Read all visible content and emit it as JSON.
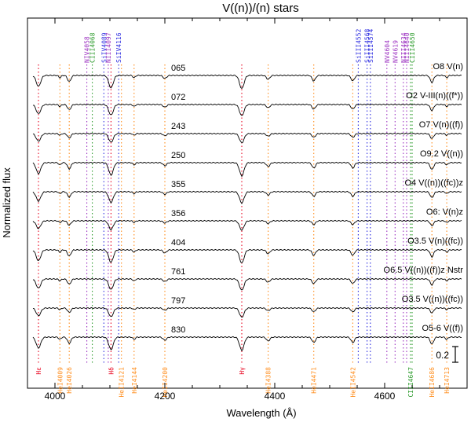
{
  "chart_data": {
    "type": "line",
    "title": "V((n))/(n) stars",
    "xlabel": "Wavelength (Å)",
    "ylabel": "Normalized flux",
    "xlim": [
      3950,
      4750
    ],
    "x_ticks": [
      4000,
      4200,
      4400,
      4600
    ],
    "scale_bar_label": "0.2",
    "line_colors": {
      "H": "#e8001c",
      "He": "#ff8c1a",
      "Si": "#2a2ae0",
      "N": "#9b30c0",
      "C": "#2a9a2a"
    },
    "lines_top": [
      {
        "label": "NIV4058",
        "wavelength": 4058,
        "element": "N"
      },
      {
        "label": "CIII4068",
        "wavelength": 4068,
        "element": "C"
      },
      {
        "label": "SiIV4089",
        "wavelength": 4089,
        "element": "Si"
      },
      {
        "label": "NIII4097",
        "wavelength": 4097,
        "element": "N"
      },
      {
        "label": "SiIV4116",
        "wavelength": 4116,
        "element": "Si"
      },
      {
        "label": "SiIII4552",
        "wavelength": 4552,
        "element": "Si"
      },
      {
        "label": "SiIII4568",
        "wavelength": 4568,
        "element": "Si"
      },
      {
        "label": "SiIII4574",
        "wavelength": 4574,
        "element": "Si"
      },
      {
        "label": "NV4604",
        "wavelength": 4604,
        "element": "N"
      },
      {
        "label": "NV4619",
        "wavelength": 4619,
        "element": "N"
      },
      {
        "label": "NIII4634",
        "wavelength": 4634,
        "element": "N"
      },
      {
        "label": "NIII4640",
        "wavelength": 4640,
        "element": "N"
      },
      {
        "label": "CIII4650",
        "wavelength": 4650,
        "element": "C"
      }
    ],
    "lines_bottom": [
      {
        "label": "Hε",
        "wavelength": 3970,
        "element": "H"
      },
      {
        "label": "HeI4009",
        "wavelength": 4009,
        "element": "He"
      },
      {
        "label": "HeI4026",
        "wavelength": 4026,
        "element": "He"
      },
      {
        "label": "Hδ",
        "wavelength": 4102,
        "element": "H"
      },
      {
        "label": "HeII4121",
        "wavelength": 4121,
        "element": "He"
      },
      {
        "label": "HeI4144",
        "wavelength": 4144,
        "element": "He"
      },
      {
        "label": "HeII4200",
        "wavelength": 4200,
        "element": "He"
      },
      {
        "label": "Hγ",
        "wavelength": 4340,
        "element": "H"
      },
      {
        "label": "HeI4388",
        "wavelength": 4388,
        "element": "He"
      },
      {
        "label": "HeI4471",
        "wavelength": 4471,
        "element": "He"
      },
      {
        "label": "HeII4542",
        "wavelength": 4542,
        "element": "He"
      },
      {
        "label": "CIII4647",
        "wavelength": 4647,
        "element": "C"
      },
      {
        "label": "HeII4686",
        "wavelength": 4686,
        "element": "He"
      },
      {
        "label": "HeI4713",
        "wavelength": 4713,
        "element": "He"
      }
    ],
    "series": [
      {
        "name": "065",
        "sptype": "O8 V(n)"
      },
      {
        "name": "072",
        "sptype": "O2 V-III(n)((f*))"
      },
      {
        "name": "243",
        "sptype": "O7 V(n)((f))"
      },
      {
        "name": "250",
        "sptype": "O9.2 V((n))"
      },
      {
        "name": "355",
        "sptype": "O4 V((n))((fc))z"
      },
      {
        "name": "356",
        "sptype": "O6: V(n)z"
      },
      {
        "name": "404",
        "sptype": "O3.5 V(n)((fc))"
      },
      {
        "name": "761",
        "sptype": "O6.5 V((n))((f))z Nstr"
      },
      {
        "name": "797",
        "sptype": "O3.5 V((n))((fc))"
      },
      {
        "name": "830",
        "sptype": "O5-6 V((f))"
      }
    ]
  }
}
